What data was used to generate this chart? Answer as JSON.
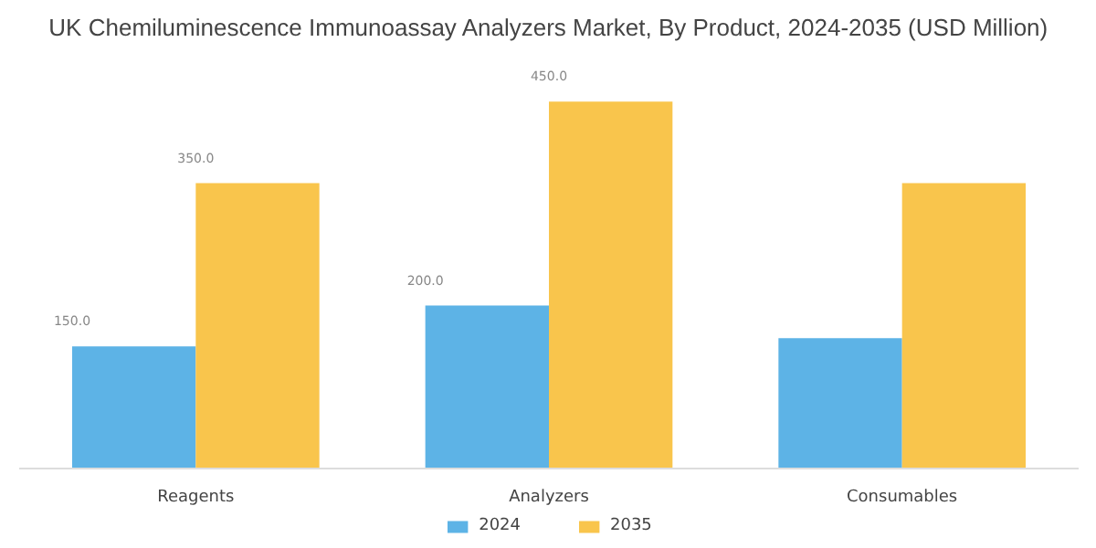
{
  "chart_data": {
    "type": "bar",
    "title": "UK Chemiluminescence Immunoassay Analyzers Market, By Product, 2024-2035 (USD Million)",
    "categories": [
      "Reagents",
      "Analyzers",
      "Consumables"
    ],
    "series": [
      {
        "name": "2024",
        "color": "#5db3e6",
        "values": [
          150,
          200,
          160
        ],
        "value_labels": [
          "150.0",
          "200.0",
          null
        ]
      },
      {
        "name": "2035",
        "color": "#f9c54c",
        "values": [
          350,
          450,
          350
        ],
        "value_labels": [
          "350.0",
          "450.0",
          null
        ]
      }
    ],
    "legend": "bottom",
    "grid": false
  }
}
